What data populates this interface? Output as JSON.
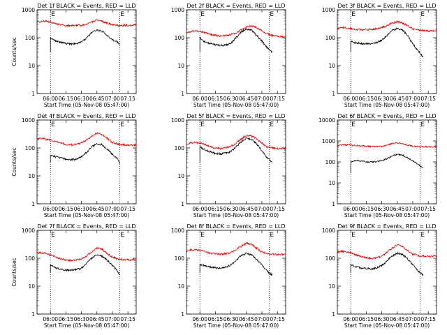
{
  "figure": {
    "xlabel": "Start Time (05-Nov-08 05:47:00)",
    "ylabel": "Counts/sec",
    "time_ticks": [
      "06:00",
      "06:15",
      "06:30",
      "06:45",
      "07:00",
      "07:15"
    ],
    "markers": [
      {
        "label": "E",
        "time": "06:00"
      },
      {
        "label": "E",
        "time": "07:07"
      }
    ],
    "colors": {
      "events": "#000000",
      "lld": "#e00000",
      "axis": "#000000"
    }
  },
  "chart_data": [
    {
      "type": "line",
      "title": "Det 1f BLACK = Events, RED = LLD",
      "y_scale": "log",
      "ylim": [
        1,
        1000
      ],
      "yticks": [
        "1",
        "10",
        "100",
        "1000"
      ],
      "x_range": [
        "05:47",
        "07:23"
      ],
      "series": [
        {
          "name": "Events",
          "color": "#000000",
          "x": [
            "06:00",
            "06:05",
            "06:10",
            "06:15",
            "06:20",
            "06:25",
            "06:30",
            "06:35",
            "06:40",
            "06:45",
            "06:50",
            "06:55",
            "07:00",
            "07:05",
            "07:07"
          ],
          "values": [
            100,
            75,
            68,
            62,
            60,
            63,
            70,
            100,
            150,
            190,
            170,
            120,
            85,
            70,
            55
          ]
        },
        {
          "name": "LLD",
          "color": "#e00000",
          "x": [
            "05:47",
            "05:50",
            "05:55",
            "06:00",
            "06:05",
            "06:10",
            "06:15",
            "06:20",
            "06:25",
            "06:30",
            "06:35",
            "06:40",
            "06:45",
            "06:50",
            "06:55",
            "07:00",
            "07:05",
            "07:10",
            "07:15",
            "07:20",
            "07:23"
          ],
          "values": [
            360,
            380,
            390,
            370,
            320,
            290,
            275,
            270,
            272,
            280,
            300,
            360,
            420,
            390,
            330,
            290,
            275,
            275,
            280,
            285,
            290
          ]
        }
      ]
    },
    {
      "type": "line",
      "title": "Det 2f BLACK = Events, RED = LLD",
      "y_scale": "log",
      "ylim": [
        1,
        1000
      ],
      "yticks": [
        "1",
        "10",
        "100",
        "1000"
      ],
      "x_range": [
        "05:47",
        "07:23"
      ],
      "series": [
        {
          "name": "Events",
          "color": "#000000",
          "x": [
            "06:00",
            "06:05",
            "06:10",
            "06:15",
            "06:20",
            "06:25",
            "06:30",
            "06:35",
            "06:40",
            "06:45",
            "06:50",
            "06:55",
            "07:00",
            "07:05",
            "07:10"
          ],
          "values": [
            100,
            70,
            62,
            56,
            52,
            55,
            65,
            100,
            160,
            200,
            190,
            120,
            75,
            45,
            30
          ]
        },
        {
          "name": "LLD",
          "color": "#e00000",
          "x": [
            "05:47",
            "05:50",
            "05:55",
            "06:00",
            "06:05",
            "06:10",
            "06:15",
            "06:20",
            "06:25",
            "06:30",
            "06:35",
            "06:40",
            "06:45",
            "06:50",
            "06:55",
            "07:00",
            "07:05",
            "07:10",
            "07:15",
            "07:20",
            "07:23"
          ],
          "values": [
            150,
            165,
            175,
            170,
            150,
            130,
            120,
            115,
            120,
            130,
            150,
            190,
            240,
            260,
            230,
            180,
            140,
            120,
            115,
            110,
            110
          ]
        }
      ]
    },
    {
      "type": "line",
      "title": "Det 3f BLACK = Events, RED = LLD",
      "y_scale": "log",
      "ylim": [
        1,
        1000
      ],
      "yticks": [
        "1",
        "10",
        "100",
        "1000"
      ],
      "x_range": [
        "05:47",
        "07:23"
      ],
      "series": [
        {
          "name": "Events",
          "color": "#000000",
          "x": [
            "06:00",
            "06:05",
            "06:10",
            "06:15",
            "06:20",
            "06:25",
            "06:30",
            "06:35",
            "06:40",
            "06:45",
            "06:50",
            "06:55",
            "07:00",
            "07:05",
            "07:10"
          ],
          "values": [
            75,
            65,
            62,
            60,
            62,
            68,
            80,
            120,
            180,
            210,
            190,
            120,
            60,
            35,
            20
          ]
        },
        {
          "name": "LLD",
          "color": "#e00000",
          "x": [
            "05:47",
            "05:50",
            "05:55",
            "06:00",
            "06:05",
            "06:10",
            "06:15",
            "06:20",
            "06:25",
            "06:30",
            "06:35",
            "06:40",
            "06:45",
            "06:50",
            "06:55",
            "07:00",
            "07:05",
            "07:10",
            "07:15",
            "07:20",
            "07:23"
          ],
          "values": [
            210,
            230,
            225,
            210,
            200,
            195,
            195,
            200,
            210,
            230,
            270,
            330,
            380,
            340,
            270,
            210,
            190,
            180,
            175,
            175,
            180
          ]
        }
      ]
    },
    {
      "type": "line",
      "title": "Det 4f BLACK = Events, RED = LLD",
      "y_scale": "log",
      "ylim": [
        1,
        1000
      ],
      "yticks": [
        "1",
        "10",
        "100",
        "1000"
      ],
      "x_range": [
        "05:47",
        "07:23"
      ],
      "series": [
        {
          "name": "Events",
          "color": "#000000",
          "x": [
            "06:00",
            "06:05",
            "06:10",
            "06:15",
            "06:20",
            "06:25",
            "06:30",
            "06:35",
            "06:40",
            "06:45",
            "06:50",
            "06:55",
            "07:00",
            "07:05",
            "07:07"
          ],
          "values": [
            55,
            48,
            44,
            40,
            38,
            40,
            48,
            70,
            110,
            140,
            130,
            90,
            60,
            40,
            28
          ]
        },
        {
          "name": "LLD",
          "color": "#e00000",
          "x": [
            "05:47",
            "05:50",
            "05:55",
            "06:00",
            "06:05",
            "06:10",
            "06:15",
            "06:20",
            "06:25",
            "06:30",
            "06:35",
            "06:40",
            "06:45",
            "06:50",
            "06:55",
            "07:00",
            "07:05",
            "07:10",
            "07:15",
            "07:20",
            "07:23"
          ],
          "values": [
            200,
            215,
            210,
            190,
            170,
            150,
            135,
            130,
            135,
            150,
            190,
            260,
            340,
            300,
            220,
            160,
            140,
            130,
            125,
            125,
            130
          ]
        }
      ]
    },
    {
      "type": "line",
      "title": "Det 5f BLACK = Events, RED = LLD",
      "y_scale": "log",
      "ylim": [
        1,
        1000
      ],
      "yticks": [
        "1",
        "10",
        "100",
        "1000"
      ],
      "x_range": [
        "05:47",
        "07:23"
      ],
      "series": [
        {
          "name": "Events",
          "color": "#000000",
          "x": [
            "06:00",
            "06:05",
            "06:10",
            "06:15",
            "06:20",
            "06:25",
            "06:30",
            "06:35",
            "06:40",
            "06:45",
            "06:50",
            "06:55",
            "07:00",
            "07:05",
            "07:10"
          ],
          "values": [
            110,
            85,
            72,
            65,
            62,
            65,
            75,
            110,
            170,
            220,
            200,
            140,
            80,
            45,
            30
          ]
        },
        {
          "name": "LLD",
          "color": "#e00000",
          "x": [
            "05:47",
            "05:50",
            "05:55",
            "06:00",
            "06:05",
            "06:10",
            "06:15",
            "06:20",
            "06:25",
            "06:30",
            "06:35",
            "06:40",
            "06:45",
            "06:50",
            "06:55",
            "07:00",
            "07:05",
            "07:10",
            "07:15",
            "07:20",
            "07:23"
          ],
          "values": [
            130,
            150,
            155,
            150,
            130,
            110,
            100,
            95,
            100,
            115,
            150,
            210,
            280,
            270,
            210,
            150,
            110,
            100,
            95,
            95,
            100
          ]
        }
      ]
    },
    {
      "type": "line",
      "title": "Det 6f BLACK = Events, RED = LLD",
      "y_scale": "log",
      "ylim": [
        1,
        10000
      ],
      "yticks": [
        "1",
        "10",
        "100",
        "1000",
        "10000"
      ],
      "x_range": [
        "05:47",
        "07:23"
      ],
      "series": [
        {
          "name": "Events",
          "color": "#000000",
          "x": [
            "06:00",
            "06:05",
            "06:10",
            "06:15",
            "06:20",
            "06:25",
            "06:30",
            "06:35",
            "06:40",
            "06:45",
            "06:50",
            "06:55",
            "07:00",
            "07:05",
            "07:10"
          ],
          "values": [
            100,
            120,
            110,
            100,
            100,
            105,
            115,
            140,
            190,
            230,
            210,
            160,
            110,
            80,
            50
          ]
        },
        {
          "name": "LLD",
          "color": "#e00000",
          "x": [
            "05:47",
            "05:50",
            "05:55",
            "06:00",
            "06:05",
            "06:10",
            "06:15",
            "06:20",
            "06:25",
            "06:30",
            "06:35",
            "06:40",
            "06:45",
            "06:50",
            "06:55",
            "07:00",
            "07:05",
            "07:10",
            "07:15",
            "07:20",
            "07:23"
          ],
          "values": [
            600,
            640,
            650,
            640,
            620,
            590,
            560,
            540,
            545,
            560,
            620,
            740,
            820,
            760,
            640,
            560,
            540,
            530,
            530,
            530,
            540
          ]
        }
      ]
    },
    {
      "type": "line",
      "title": "Det 7f BLACK = Events, RED = LLD",
      "y_scale": "log",
      "ylim": [
        1,
        1000
      ],
      "yticks": [
        "1",
        "10",
        "100",
        "1000"
      ],
      "x_range": [
        "05:47",
        "07:23"
      ],
      "series": [
        {
          "name": "Events",
          "color": "#000000",
          "x": [
            "06:00",
            "06:05",
            "06:10",
            "06:15",
            "06:20",
            "06:25",
            "06:30",
            "06:35",
            "06:40",
            "06:45",
            "06:50",
            "06:55",
            "07:00",
            "07:05",
            "07:07"
          ],
          "values": [
            60,
            45,
            40,
            38,
            37,
            39,
            45,
            65,
            100,
            130,
            120,
            85,
            55,
            35,
            25
          ]
        },
        {
          "name": "LLD",
          "color": "#e00000",
          "x": [
            "05:47",
            "05:50",
            "05:55",
            "06:00",
            "06:05",
            "06:10",
            "06:15",
            "06:20",
            "06:25",
            "06:30",
            "06:35",
            "06:40",
            "06:45",
            "06:50",
            "06:55",
            "07:00",
            "07:05",
            "07:10",
            "07:15",
            "07:20",
            "07:23"
          ],
          "values": [
            150,
            160,
            150,
            130,
            110,
            95,
            85,
            82,
            85,
            95,
            120,
            170,
            230,
            210,
            150,
            110,
            95,
            90,
            88,
            88,
            90
          ]
        }
      ]
    },
    {
      "type": "line",
      "title": "Det 8f BLACK = Events, RED = LLD",
      "y_scale": "log",
      "ylim": [
        1,
        1000
      ],
      "yticks": [
        "1",
        "10",
        "100",
        "1000"
      ],
      "x_range": [
        "05:47",
        "07:23"
      ],
      "series": [
        {
          "name": "Events",
          "color": "#000000",
          "x": [
            "06:00",
            "06:05",
            "06:10",
            "06:15",
            "06:20",
            "06:25",
            "06:30",
            "06:35",
            "06:40",
            "06:45",
            "06:50",
            "06:55",
            "07:00",
            "07:05",
            "07:10"
          ],
          "values": [
            60,
            52,
            48,
            45,
            44,
            48,
            58,
            85,
            125,
            150,
            130,
            90,
            60,
            35,
            25
          ]
        },
        {
          "name": "LLD",
          "color": "#e00000",
          "x": [
            "05:47",
            "05:50",
            "05:55",
            "06:00",
            "06:05",
            "06:10",
            "06:15",
            "06:20",
            "06:25",
            "06:30",
            "06:35",
            "06:40",
            "06:45",
            "06:50",
            "06:55",
            "07:00",
            "07:05",
            "07:10",
            "07:15",
            "07:20",
            "07:23"
          ],
          "values": [
            180,
            195,
            200,
            190,
            170,
            155,
            145,
            140,
            145,
            160,
            200,
            270,
            340,
            310,
            230,
            170,
            150,
            140,
            135,
            135,
            140
          ]
        }
      ]
    },
    {
      "type": "line",
      "title": "Det 9f BLACK = Events, RED = LLD",
      "y_scale": "log",
      "ylim": [
        1,
        1000
      ],
      "yticks": [
        "1",
        "10",
        "100",
        "1000"
      ],
      "x_range": [
        "05:47",
        "07:23"
      ],
      "series": [
        {
          "name": "Events",
          "color": "#000000",
          "x": [
            "06:00",
            "06:05",
            "06:10",
            "06:15",
            "06:20",
            "06:25",
            "06:30",
            "06:35",
            "06:40",
            "06:45",
            "06:50",
            "06:55",
            "07:00",
            "07:05",
            "07:10"
          ],
          "values": [
            60,
            50,
            45,
            43,
            42,
            45,
            55,
            80,
            120,
            150,
            140,
            95,
            60,
            35,
            25
          ]
        },
        {
          "name": "LLD",
          "color": "#e00000",
          "x": [
            "05:47",
            "05:50",
            "05:55",
            "06:00",
            "06:05",
            "06:10",
            "06:15",
            "06:20",
            "06:25",
            "06:30",
            "06:35",
            "06:40",
            "06:45",
            "06:50",
            "06:55",
            "07:00",
            "07:05",
            "07:10",
            "07:15",
            "07:20",
            "07:23"
          ],
          "values": [
            160,
            175,
            170,
            155,
            130,
            115,
            105,
            100,
            105,
            120,
            160,
            230,
            300,
            270,
            190,
            140,
            125,
            120,
            118,
            118,
            120
          ]
        }
      ]
    }
  ]
}
